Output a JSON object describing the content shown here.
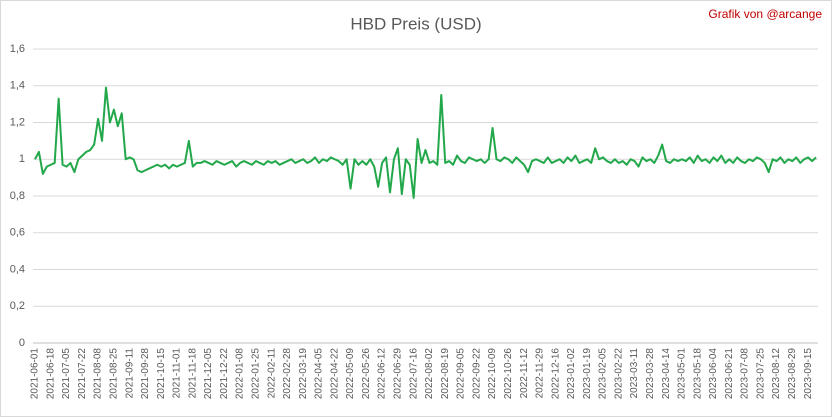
{
  "chart_data": {
    "type": "line",
    "title": "HBD Preis (USD)",
    "annotation": "Grafik von @arcange",
    "categories": [
      "2021-06-01",
      null,
      null,
      null,
      "2021-06-18",
      null,
      null,
      null,
      "2021-07-05",
      null,
      null,
      null,
      "2021-07-22",
      null,
      null,
      null,
      "2021-08-08",
      null,
      null,
      null,
      "2021-08-25",
      null,
      null,
      null,
      "2021-09-11",
      null,
      null,
      null,
      "2021-09-28",
      null,
      null,
      null,
      "2021-10-15",
      null,
      null,
      null,
      "2021-11-01",
      null,
      null,
      null,
      "2021-11-18",
      null,
      null,
      null,
      "2021-12-05",
      null,
      null,
      null,
      "2021-12-22",
      null,
      null,
      null,
      "2022-01-08",
      null,
      null,
      null,
      "2022-01-25",
      null,
      null,
      null,
      "2022-02-11",
      null,
      null,
      null,
      "2022-02-28",
      null,
      null,
      null,
      "2022-03-19",
      null,
      null,
      null,
      "2022-04-05",
      null,
      null,
      null,
      "2022-04-22",
      null,
      null,
      null,
      "2022-05-09",
      null,
      null,
      null,
      "2022-05-26",
      null,
      null,
      null,
      "2022-06-12",
      null,
      null,
      null,
      "2022-06-29",
      null,
      null,
      null,
      "2022-07-16",
      null,
      null,
      null,
      "2022-08-02",
      null,
      null,
      null,
      "2022-08-19",
      null,
      null,
      null,
      "2022-09-05",
      null,
      null,
      null,
      "2022-09-22",
      null,
      null,
      null,
      "2022-10-09",
      null,
      null,
      null,
      "2022-10-26",
      null,
      null,
      null,
      "2022-11-12",
      null,
      null,
      null,
      "2022-11-29",
      null,
      null,
      null,
      "2022-12-16",
      null,
      null,
      null,
      "2023-01-02",
      null,
      null,
      null,
      "2023-01-19",
      null,
      null,
      null,
      "2023-02-05",
      null,
      null,
      null,
      "2023-02-22",
      null,
      null,
      null,
      "2023-03-11",
      null,
      null,
      null,
      "2023-03-28",
      null,
      null,
      null,
      "2023-04-14",
      null,
      null,
      null,
      "2023-05-01",
      null,
      null,
      null,
      "2023-05-18",
      null,
      null,
      null,
      "2023-06-04",
      null,
      null,
      null,
      "2023-06-21",
      null,
      null,
      null,
      "2023-07-08",
      null,
      null,
      null,
      "2023-07-25",
      null,
      null,
      null,
      "2023-08-12",
      null,
      null,
      null,
      "2023-08-29",
      null,
      null,
      null,
      "2023-09-15",
      null,
      null
    ],
    "series": [
      {
        "name": "HBD",
        "color": "#22a84a",
        "values": [
          1.0,
          1.04,
          0.92,
          0.96,
          0.97,
          0.98,
          1.33,
          0.97,
          0.96,
          0.98,
          0.93,
          1.0,
          1.02,
          1.04,
          1.05,
          1.08,
          1.22,
          1.1,
          1.39,
          1.2,
          1.27,
          1.18,
          1.25,
          1.0,
          1.01,
          1.0,
          0.94,
          0.93,
          0.94,
          0.95,
          0.96,
          0.97,
          0.96,
          0.97,
          0.95,
          0.97,
          0.96,
          0.97,
          0.98,
          1.1,
          0.96,
          0.98,
          0.98,
          0.99,
          0.98,
          0.97,
          0.99,
          0.98,
          0.97,
          0.98,
          0.99,
          0.96,
          0.98,
          0.99,
          0.98,
          0.97,
          0.99,
          0.98,
          0.97,
          0.99,
          0.98,
          0.99,
          0.97,
          0.98,
          0.99,
          1.0,
          0.98,
          0.99,
          1.0,
          0.98,
          0.99,
          1.01,
          0.98,
          1.0,
          0.99,
          1.01,
          1.0,
          0.99,
          0.97,
          1.0,
          0.84,
          1.0,
          0.97,
          0.99,
          0.97,
          1.0,
          0.96,
          0.85,
          0.98,
          1.01,
          0.82,
          1.0,
          1.06,
          0.81,
          1.0,
          0.97,
          0.79,
          1.11,
          0.98,
          1.05,
          0.98,
          0.99,
          0.97,
          1.35,
          0.98,
          0.99,
          0.97,
          1.02,
          0.99,
          0.98,
          1.01,
          1.0,
          0.99,
          1.0,
          0.98,
          1.0,
          1.17,
          1.0,
          0.99,
          1.01,
          1.0,
          0.98,
          1.01,
          0.99,
          0.97,
          0.93,
          0.99,
          1.0,
          0.99,
          0.98,
          1.01,
          0.98,
          0.99,
          1.0,
          0.98,
          1.01,
          0.99,
          1.02,
          0.98,
          0.99,
          1.0,
          0.98,
          1.06,
          1.0,
          1.01,
          0.99,
          0.98,
          1.0,
          0.98,
          0.99,
          0.97,
          1.0,
          0.99,
          0.96,
          1.01,
          0.99,
          1.0,
          0.98,
          1.02,
          1.08,
          0.99,
          0.98,
          1.0,
          0.99,
          1.0,
          0.99,
          1.01,
          0.98,
          1.02,
          0.99,
          1.0,
          0.98,
          1.01,
          0.99,
          1.02,
          0.98,
          1.0,
          0.98,
          1.01,
          0.99,
          0.98,
          1.0,
          0.99,
          1.01,
          1.0,
          0.98,
          0.93,
          1.0,
          0.99,
          1.01,
          0.98,
          1.0,
          0.99,
          1.01,
          0.98,
          1.0,
          1.01,
          0.99,
          1.01
        ]
      }
    ],
    "ylim": [
      0,
      1.6
    ],
    "yticks": [
      0,
      {
        "value": 0.2,
        "label": "0,2"
      },
      {
        "value": 0.4,
        "label": "0,4"
      },
      {
        "value": 0.6,
        "label": "0,6"
      },
      {
        "value": 0.8,
        "label": "0,8"
      },
      1,
      {
        "value": 1.2,
        "label": "1,2"
      },
      {
        "value": 1.4,
        "label": "1,4"
      },
      {
        "value": 1.6,
        "label": "1,6"
      }
    ],
    "grid": true
  }
}
